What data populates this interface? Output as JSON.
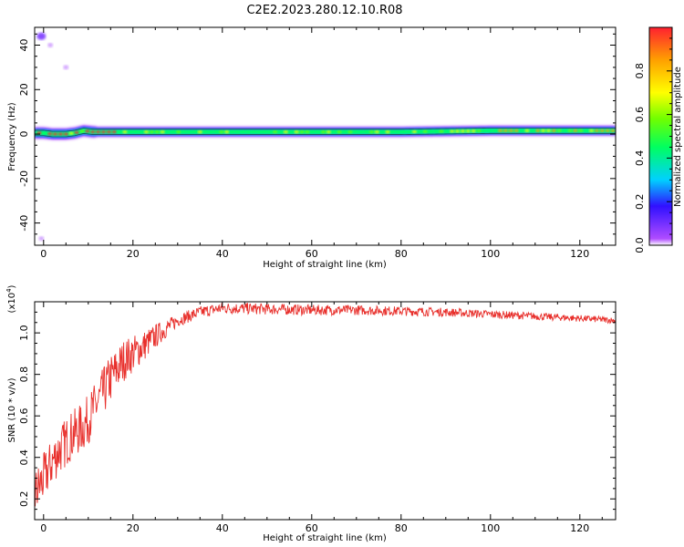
{
  "figure": {
    "title": "C2E2.2023.280.12.10.R08"
  },
  "chart_data": [
    {
      "type": "heatmap",
      "xlabel": "Height of straight line (km)",
      "ylabel": "Frequency (Hz)",
      "xlim": [
        -2,
        128
      ],
      "ylim": [
        -50,
        48
      ],
      "x_ticks": [
        0,
        20,
        40,
        60,
        80,
        100,
        120
      ],
      "y_ticks": [
        -40,
        -20,
        0,
        20,
        40
      ],
      "colorbar": {
        "label": "Normalized spectral amplitude",
        "range": [
          0,
          1
        ],
        "ticks": [
          0.0,
          0.2,
          0.4,
          0.6,
          0.8
        ],
        "colormap": [
          "#ffffff",
          "#b04cff",
          "#3010ff",
          "#00d0ff",
          "#00ff60",
          "#70ff00",
          "#ffff00",
          "#ffa000",
          "#ff2030"
        ]
      },
      "band": {
        "center_freq_at_height": [
          [
            -2,
            0.5
          ],
          [
            0,
            0.5
          ],
          [
            2,
            0
          ],
          [
            5,
            0
          ],
          [
            7,
            0.5
          ],
          [
            9,
            1.5
          ],
          [
            11,
            1
          ],
          [
            20,
            1
          ],
          [
            40,
            1
          ],
          [
            60,
            1
          ],
          [
            80,
            1
          ],
          [
            100,
            1.5
          ],
          [
            128,
            1.5
          ]
        ],
        "half_width_hz": 2.5
      },
      "spots": [
        {
          "height": -0.5,
          "freq": 44,
          "amplitude": 0.9
        },
        {
          "height": 1.5,
          "freq": 40,
          "amplitude": 0.3
        },
        {
          "height": -0.5,
          "freq": -47,
          "amplitude": 0.3
        },
        {
          "height": 5,
          "freq": 30,
          "amplitude": 0.15
        }
      ]
    },
    {
      "type": "line",
      "xlabel": "Height of straight line (km)",
      "ylabel": "SNR (10 * v/v)",
      "y_multiplier": "(x10^4)",
      "xlim": [
        -2,
        128
      ],
      "ylim": [
        0.1,
        1.15
      ],
      "x_ticks": [
        0,
        20,
        40,
        60,
        80,
        100,
        120
      ],
      "y_ticks": [
        0.2,
        0.4,
        0.6,
        0.8,
        1.0
      ],
      "series": [
        {
          "color": "#e8302c",
          "envelope": [
            [
              -2,
              0.22
            ],
            [
              0,
              0.3
            ],
            [
              3,
              0.42
            ],
            [
              6,
              0.5
            ],
            [
              9,
              0.55
            ],
            [
              12,
              0.66
            ],
            [
              15,
              0.78
            ],
            [
              18,
              0.87
            ],
            [
              22,
              0.93
            ],
            [
              26,
              1.0
            ],
            [
              30,
              1.06
            ],
            [
              35,
              1.1
            ],
            [
              40,
              1.12
            ],
            [
              50,
              1.115
            ],
            [
              60,
              1.11
            ],
            [
              70,
              1.11
            ],
            [
              80,
              1.105
            ],
            [
              90,
              1.1
            ],
            [
              100,
              1.09
            ],
            [
              110,
              1.08
            ],
            [
              120,
              1.07
            ],
            [
              128,
              1.06
            ]
          ],
          "noise_amplitude": [
            [
              -2,
              0.12
            ],
            [
              15,
              0.12
            ],
            [
              30,
              0.03
            ],
            [
              128,
              0.015
            ]
          ]
        }
      ]
    }
  ]
}
